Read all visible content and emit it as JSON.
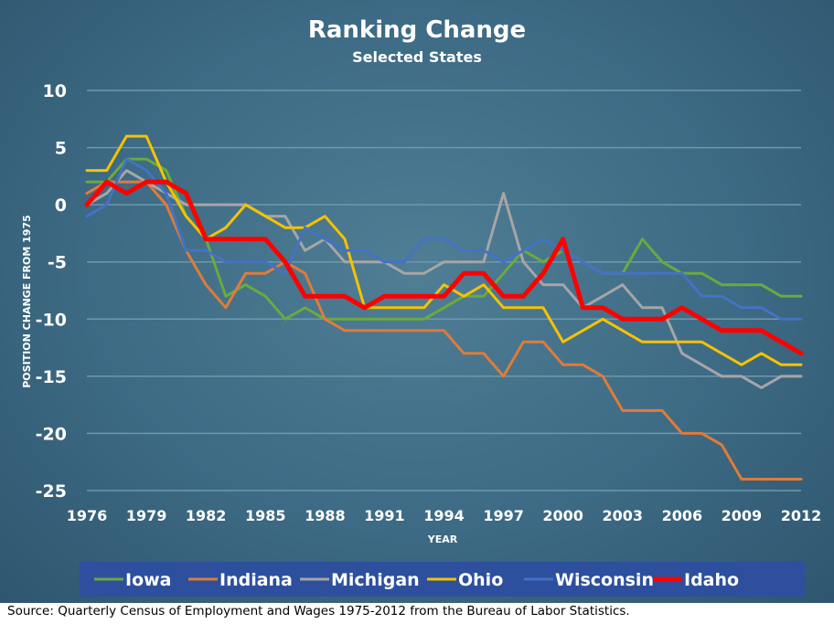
{
  "chart_data": {
    "type": "line",
    "title": "Ranking Change",
    "subtitle": "Selected States",
    "xlabel": "YEAR",
    "ylabel": "POSITION CHANGE FROM 1975",
    "ylim": [
      -25,
      10
    ],
    "yticks": [
      10,
      5,
      0,
      -5,
      -10,
      -15,
      -20,
      -25
    ],
    "xlim": [
      1976,
      2012
    ],
    "xticks": [
      1976,
      1979,
      1982,
      1985,
      1988,
      1991,
      1994,
      1997,
      2000,
      2003,
      2006,
      2009,
      2012
    ],
    "grid": true,
    "legend_position": "bottom",
    "x": [
      1976,
      1977,
      1978,
      1979,
      1980,
      1981,
      1982,
      1983,
      1984,
      1985,
      1986,
      1987,
      1988,
      1989,
      1990,
      1991,
      1992,
      1993,
      1994,
      1995,
      1996,
      1997,
      1998,
      1999,
      2000,
      2001,
      2002,
      2003,
      2004,
      2005,
      2006,
      2007,
      2008,
      2009,
      2010,
      2011,
      2012
    ],
    "series": [
      {
        "name": "Iowa",
        "color": "#6aaa3e",
        "values": [
          2,
          2,
          4,
          4,
          3,
          -1,
          -3,
          -8,
          -7,
          -8,
          -10,
          -9,
          -10,
          -10,
          -10,
          -10,
          -10,
          -10,
          -9,
          -8,
          -8,
          -6,
          -4,
          -5,
          -4,
          -5,
          -6,
          -6,
          -3,
          -5,
          -6,
          -6,
          -7,
          -7,
          -7,
          -8,
          -8
        ]
      },
      {
        "name": "Indiana",
        "color": "#e07b39",
        "values": [
          1,
          2,
          2,
          2,
          0,
          -4,
          -7,
          -9,
          -6,
          -6,
          -5,
          -6,
          -10,
          -11,
          -11,
          -11,
          -11,
          -11,
          -11,
          -13,
          -13,
          -15,
          -12,
          -12,
          -14,
          -14,
          -15,
          -18,
          -18,
          -18,
          -20,
          -20,
          -21,
          -24,
          -24,
          -24,
          -24
        ]
      },
      {
        "name": "Michigan",
        "color": "#a6a6a6",
        "values": [
          0,
          1,
          3,
          2,
          1,
          0,
          0,
          0,
          0,
          -1,
          -1,
          -4,
          -3,
          -5,
          -5,
          -5,
          -6,
          -6,
          -5,
          -5,
          -5,
          1,
          -5,
          -7,
          -7,
          -9,
          -8,
          -7,
          -9,
          -9,
          -13,
          -14,
          -15,
          -15,
          -16,
          -15,
          -15
        ]
      },
      {
        "name": "Ohio",
        "color": "#f5c200",
        "values": [
          3,
          3,
          6,
          6,
          2,
          -1,
          -3,
          -2,
          0,
          -1,
          -2,
          -2,
          -1,
          -3,
          -9,
          -9,
          -9,
          -9,
          -7,
          -8,
          -7,
          -9,
          -9,
          -9,
          -12,
          -11,
          -10,
          -11,
          -12,
          -12,
          -12,
          -12,
          -13,
          -14,
          -13,
          -14,
          -14
        ]
      },
      {
        "name": "Wisconsin",
        "color": "#4472c4",
        "values": [
          -1,
          0,
          4,
          3,
          1,
          -4,
          -4,
          -5,
          -5,
          -5,
          -6,
          -2,
          -3,
          -4,
          -4,
          -5,
          -5,
          -3,
          -3,
          -4,
          -4,
          -5,
          -4,
          -3,
          -4,
          -5,
          -6,
          -6,
          -6,
          -6,
          -6,
          -8,
          -8,
          -9,
          -9,
          -10,
          -10
        ]
      },
      {
        "name": "Idaho",
        "color": "#ff0000",
        "values": [
          0,
          2,
          1,
          2,
          2,
          1,
          -3,
          -3,
          -3,
          -3,
          -5,
          -8,
          -8,
          -8,
          -9,
          -8,
          -8,
          -8,
          -8,
          -6,
          -6,
          -8,
          -8,
          -6,
          -3,
          -9,
          -9,
          -10,
          -10,
          -10,
          -9,
          -10,
          -11,
          -11,
          -11,
          -12,
          -13
        ]
      }
    ]
  },
  "source": "Source: Quarterly Census of Employment and Wages 1975-2012 from the Bureau of Labor Statistics."
}
